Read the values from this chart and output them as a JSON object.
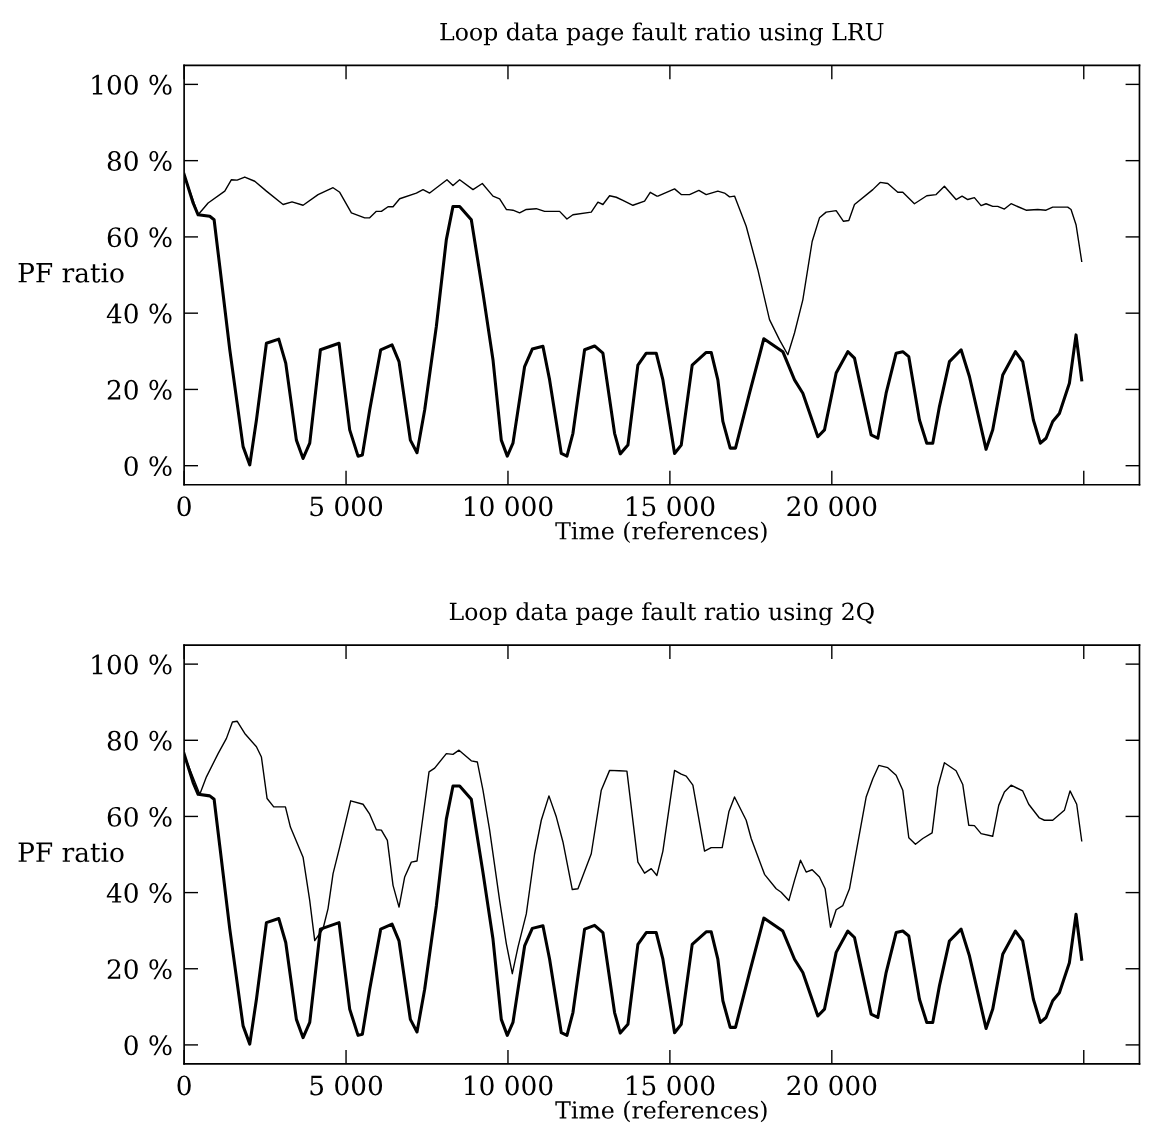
{
  "chart_data": [
    {
      "type": "line",
      "title": "Loop data page fault ratio using LRU",
      "xlabel": "Time (references)",
      "ylabel": "PF ratio",
      "xlim": [
        0,
        29500
      ],
      "ylim": [
        -5,
        105
      ],
      "xticks": [
        0,
        {
          "value": 5000,
          "label": "5 000"
        },
        {
          "value": 10000,
          "label": "10 000"
        },
        {
          "value": 15000,
          "label": "15 000"
        },
        {
          "value": 20000,
          "label": "20 000"
        },
        {
          "value": 27780,
          "label": null
        }
      ],
      "yticks": [
        {
          "value": 0,
          "label": "0 %"
        },
        {
          "value": 20,
          "label": "20 %"
        },
        {
          "value": 40,
          "label": "40 %"
        },
        {
          "value": 60,
          "label": "60 %"
        },
        {
          "value": 80,
          "label": "80 %"
        },
        {
          "value": 100,
          "label": "100 %"
        }
      ],
      "grid": false,
      "marker": "none",
      "line_style": "solid",
      "series": [
        {
          "color": "#000000",
          "x": [
            0,
            432,
            741,
            1255,
            1461,
            1636,
            1872,
            2181,
            2541,
            3056,
            3333,
            3673,
            4136,
            4599,
            4805,
            5165,
            5576,
            5730,
            5936,
            6091,
            6296,
            6451,
            6656,
            7171,
            7377,
            7582,
            8117,
            8302,
            8508,
            8920,
            9208,
            9537,
            9743,
            9949,
            10154,
            10360,
            10566,
            10874,
            11132,
            11595,
            11821,
            12006,
            12572,
            12778,
            12932,
            13138,
            13344,
            13549,
            13858,
            14218,
            14393,
            14599,
            14630,
            15144,
            15350,
            15607,
            15895,
            16121,
            16481,
            16687,
            16842,
            16996,
            17356,
            17716,
            18076,
            18385,
            18642,
            18848,
            19105,
            19393,
            19619,
            19825,
            20134,
            20360,
            20525,
            20700,
            21266,
            21492,
            21728,
            22037,
            22192,
            22551,
            22932,
            23220,
            23477,
            23837,
            24022,
            24198,
            24403,
            24609,
            24763,
            24969,
            25123,
            25329,
            25535,
            25998,
            26358,
            26615,
            26821,
            27284,
            27387,
            27541,
            27716
          ],
          "values": [
            76.4,
            65.8,
            68.9,
            72,
            75,
            74.9,
            75.7,
            74.6,
            72,
            68.5,
            69.2,
            68.3,
            71.1,
            72.9,
            71.7,
            66.3,
            65,
            65,
            66.7,
            66.7,
            67.9,
            67.9,
            70,
            71.5,
            72.4,
            71.5,
            75,
            73.5,
            75,
            72.4,
            74,
            70.7,
            70,
            67.2,
            67,
            66.3,
            67.2,
            67.4,
            66.7,
            66.7,
            64.7,
            65.8,
            66.5,
            69.1,
            68.5,
            70.8,
            70.4,
            69.6,
            68.3,
            69.4,
            71.7,
            70.7,
            70.7,
            72.6,
            71.1,
            71.1,
            72.2,
            71.1,
            72,
            71.5,
            70.5,
            70.7,
            62.8,
            51.4,
            38.3,
            33,
            29.1,
            34.8,
            43.5,
            58.8,
            65,
            66.5,
            66.9,
            64.1,
            64.3,
            68.5,
            72.4,
            74.3,
            74,
            71.7,
            71.7,
            68.7,
            70.8,
            71.1,
            73.3,
            69.8,
            70.7,
            69.8,
            70.3,
            68.2,
            68.7,
            68,
            68,
            67.3,
            68.7,
            67,
            67.2,
            67,
            67.8,
            67.8,
            67.2,
            63.2,
            53.6
          ]
        },
        {
          "color": "#000000",
          "x": [
            0,
            278,
            432,
            792,
            926,
            1100,
            1410,
            1821,
            2027,
            2233,
            2541,
            2922,
            3138,
            3467,
            3673,
            3879,
            4208,
            4784,
            5113,
            5370,
            5504,
            5730,
            6070,
            6420,
            6636,
            6986,
            7191,
            7428,
            7788,
            8097,
            8302,
            8508,
            8868,
            9228,
            9537,
            9794,
            9979,
            10154,
            10514,
            10751,
            11080,
            11286,
            11646,
            11821,
            12006,
            12366,
            12675,
            12932,
            13292,
            13467,
            13704,
            14012,
            14270,
            14578,
            14784,
            15144,
            15350,
            15689,
            16121,
            16276,
            16481,
            16636,
            16862,
            17026,
            17459,
            17901,
            18487,
            18848,
            19105,
            19568,
            19774,
            20134,
            20494,
            20700,
            21214,
            21420,
            21677,
            21986,
            22192,
            22377,
            22706,
            22932,
            23117,
            23323,
            23632,
            23992,
            24249,
            24763,
            24969,
            25278,
            25669,
            25895,
            26224,
            26440,
            26615,
            26821,
            27027,
            27336,
            27541,
            27716
          ],
          "values": [
            76.4,
            68.9,
            65.8,
            65.4,
            64.5,
            52.3,
            30.4,
            5,
            0.2,
            12,
            32.1,
            33.2,
            26.9,
            6.7,
            1.9,
            5.9,
            30.4,
            32.1,
            9.4,
            2.5,
            2.8,
            14.6,
            30.4,
            31.7,
            27.3,
            6.7,
            3.4,
            14.6,
            36.5,
            59.3,
            68,
            68,
            64.5,
            45.3,
            27.8,
            6.7,
            2.5,
            5.9,
            26,
            30.6,
            31.3,
            22.5,
            3.2,
            2.5,
            8.5,
            30.4,
            31.4,
            29.5,
            8.5,
            3.1,
            5.4,
            26.4,
            29.5,
            29.5,
            22.5,
            3.2,
            5.4,
            26.4,
            29.7,
            29.7,
            22.5,
            11.6,
            4.6,
            4.6,
            19,
            33.3,
            29.9,
            22.5,
            19,
            7.6,
            9.4,
            24.3,
            29.9,
            28.2,
            8.1,
            7.2,
            19,
            29.5,
            29.9,
            28.6,
            12,
            5.9,
            5.9,
            15.5,
            27.3,
            30.4,
            23.4,
            4.3,
            9.4,
            23.8,
            29.9,
            27.3,
            12,
            5.9,
            7.2,
            11.6,
            13.7,
            21.6,
            34.3,
            22.5
          ]
        }
      ]
    },
    {
      "type": "line",
      "title": "Loop data page fault ratio using 2Q",
      "xlabel": "Time (references)",
      "ylabel": "PF ratio",
      "xlim": [
        0,
        29500
      ],
      "ylim": [
        -5,
        105
      ],
      "xticks": [
        0,
        {
          "value": 5000,
          "label": "5 000"
        },
        {
          "value": 10000,
          "label": "10 000"
        },
        {
          "value": 15000,
          "label": "15 000"
        },
        {
          "value": 20000,
          "label": "20 000"
        },
        {
          "value": 27780,
          "label": null
        }
      ],
      "yticks": [
        {
          "value": 0,
          "label": "0 %"
        },
        {
          "value": 20,
          "label": "20 %"
        },
        {
          "value": 40,
          "label": "40 %"
        },
        {
          "value": 60,
          "label": "60 %"
        },
        {
          "value": 80,
          "label": "80 %"
        },
        {
          "value": 100,
          "label": "100 %"
        }
      ],
      "grid": false,
      "marker": "none",
      "line_style": "solid",
      "series": [
        {
          "color": "#000000",
          "x": [
            0,
            484,
            689,
            1049,
            1307,
            1492,
            1636,
            1872,
            2233,
            2387,
            2562,
            2767,
            3128,
            3282,
            3673,
            3879,
            4033,
            4290,
            4444,
            4599,
            4805,
            5144,
            5525,
            5730,
            5936,
            6091,
            6276,
            6451,
            6636,
            6811,
            7016,
            7191,
            7562,
            7737,
            8097,
            8302,
            8488,
            8868,
            9054,
            9228,
            9434,
            9743,
            9949,
            10134,
            10309,
            10566,
            10823,
            11029,
            11265,
            11492,
            11698,
            11986,
            12161,
            12572,
            12881,
            13138,
            13426,
            13673,
            14012,
            14218,
            14424,
            14599,
            14784,
            15144,
            15350,
            15504,
            15710,
            16070,
            16276,
            16615,
            16821,
            16996,
            17356,
            17510,
            17922,
            18282,
            18436,
            18673,
            18848,
            19033,
            19208,
            19393,
            19619,
            19794,
            19959,
            20134,
            20340,
            20545,
            21060,
            21266,
            21451,
            21728,
            21986,
            22192,
            22377,
            22583,
            22809,
            23097,
            23272,
            23477,
            23837,
            24043,
            24228,
            24403,
            24609,
            24969,
            25154,
            25329,
            25535,
            25895,
            26080,
            26409,
            26564,
            26821,
            27181,
            27356,
            27562,
            27716
          ],
          "values": [
            76.2,
            65.8,
            70.4,
            76.5,
            80.5,
            84.8,
            85,
            81.8,
            78.3,
            75.6,
            64.7,
            62.5,
            62.5,
            57.2,
            49.3,
            37.9,
            27.4,
            30.5,
            35.8,
            45,
            52,
            64.1,
            63.2,
            60.6,
            56.5,
            56.4,
            53.7,
            41.9,
            36.2,
            44.1,
            48,
            48.3,
            71.7,
            72.7,
            76.5,
            76.3,
            77.4,
            74.6,
            74.3,
            66.9,
            56.4,
            37.9,
            26.6,
            18.7,
            25.7,
            34.4,
            50.2,
            59,
            65.4,
            59.9,
            53.3,
            40.8,
            41,
            50.2,
            66.9,
            72.1,
            72,
            71.9,
            48,
            45.1,
            46.3,
            44.5,
            50.9,
            72.1,
            71.1,
            70.6,
            68.2,
            50.9,
            51.8,
            51.8,
            61.2,
            65.1,
            59,
            54.2,
            44.8,
            41,
            40.1,
            37.9,
            43.2,
            48.5,
            45.4,
            46,
            44.1,
            41,
            30.9,
            35.5,
            36.6,
            41,
            65.1,
            69.9,
            73.4,
            72.8,
            70.8,
            66.9,
            54.4,
            52.7,
            54.2,
            55.7,
            67.7,
            74.1,
            72,
            68.4,
            57.7,
            57.6,
            55.5,
            54.8,
            62.9,
            66.4,
            68.2,
            66.7,
            63.2,
            59.6,
            59,
            59,
            61.6,
            66.7,
            63.2,
            53.6
          ]
        },
        {
          "color": "#000000",
          "x": [
            0,
            278,
            432,
            792,
            926,
            1100,
            1410,
            1821,
            2027,
            2233,
            2541,
            2922,
            3138,
            3467,
            3673,
            3879,
            4208,
            4784,
            5113,
            5370,
            5504,
            5730,
            6070,
            6420,
            6636,
            6986,
            7191,
            7428,
            7788,
            8097,
            8302,
            8508,
            8868,
            9228,
            9537,
            9794,
            9979,
            10154,
            10514,
            10751,
            11080,
            11286,
            11646,
            11821,
            12006,
            12366,
            12675,
            12932,
            13292,
            13467,
            13704,
            14012,
            14270,
            14578,
            14784,
            15144,
            15350,
            15689,
            16121,
            16276,
            16481,
            16636,
            16862,
            17026,
            17459,
            17901,
            18487,
            18848,
            19105,
            19568,
            19774,
            20134,
            20494,
            20700,
            21214,
            21420,
            21677,
            21986,
            22192,
            22377,
            22706,
            22932,
            23117,
            23323,
            23632,
            23992,
            24249,
            24763,
            24969,
            25278,
            25669,
            25895,
            26224,
            26440,
            26615,
            26821,
            27027,
            27336,
            27541,
            27716
          ],
          "values": [
            76.4,
            68.9,
            65.8,
            65.4,
            64.5,
            52.3,
            30.4,
            5,
            0.2,
            12,
            32.1,
            33.2,
            26.9,
            6.7,
            1.9,
            5.9,
            30.4,
            32.1,
            9.4,
            2.5,
            2.8,
            14.6,
            30.4,
            31.7,
            27.3,
            6.7,
            3.4,
            14.6,
            36.5,
            59.3,
            68,
            68,
            64.5,
            45.3,
            27.8,
            6.7,
            2.5,
            5.9,
            26,
            30.6,
            31.3,
            22.5,
            3.2,
            2.5,
            8.5,
            30.4,
            31.4,
            29.5,
            8.5,
            3.1,
            5.4,
            26.4,
            29.5,
            29.5,
            22.5,
            3.2,
            5.4,
            26.4,
            29.7,
            29.7,
            22.5,
            11.6,
            4.6,
            4.6,
            19,
            33.3,
            29.9,
            22.5,
            19,
            7.6,
            9.4,
            24.3,
            29.9,
            28.2,
            8.1,
            7.2,
            19,
            29.5,
            29.9,
            28.6,
            12,
            5.9,
            5.9,
            15.5,
            27.3,
            30.4,
            23.4,
            4.3,
            9.4,
            23.8,
            29.9,
            27.3,
            12,
            5.9,
            7.2,
            11.6,
            13.7,
            21.6,
            34.3,
            22.5
          ]
        }
      ]
    }
  ]
}
